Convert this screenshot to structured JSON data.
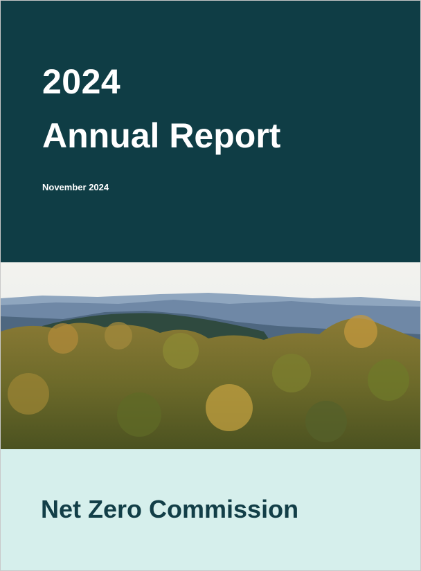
{
  "cover": {
    "year": "2024",
    "title": "Annual Report",
    "date": "November 2024",
    "organisation": "Net Zero Commission"
  }
}
